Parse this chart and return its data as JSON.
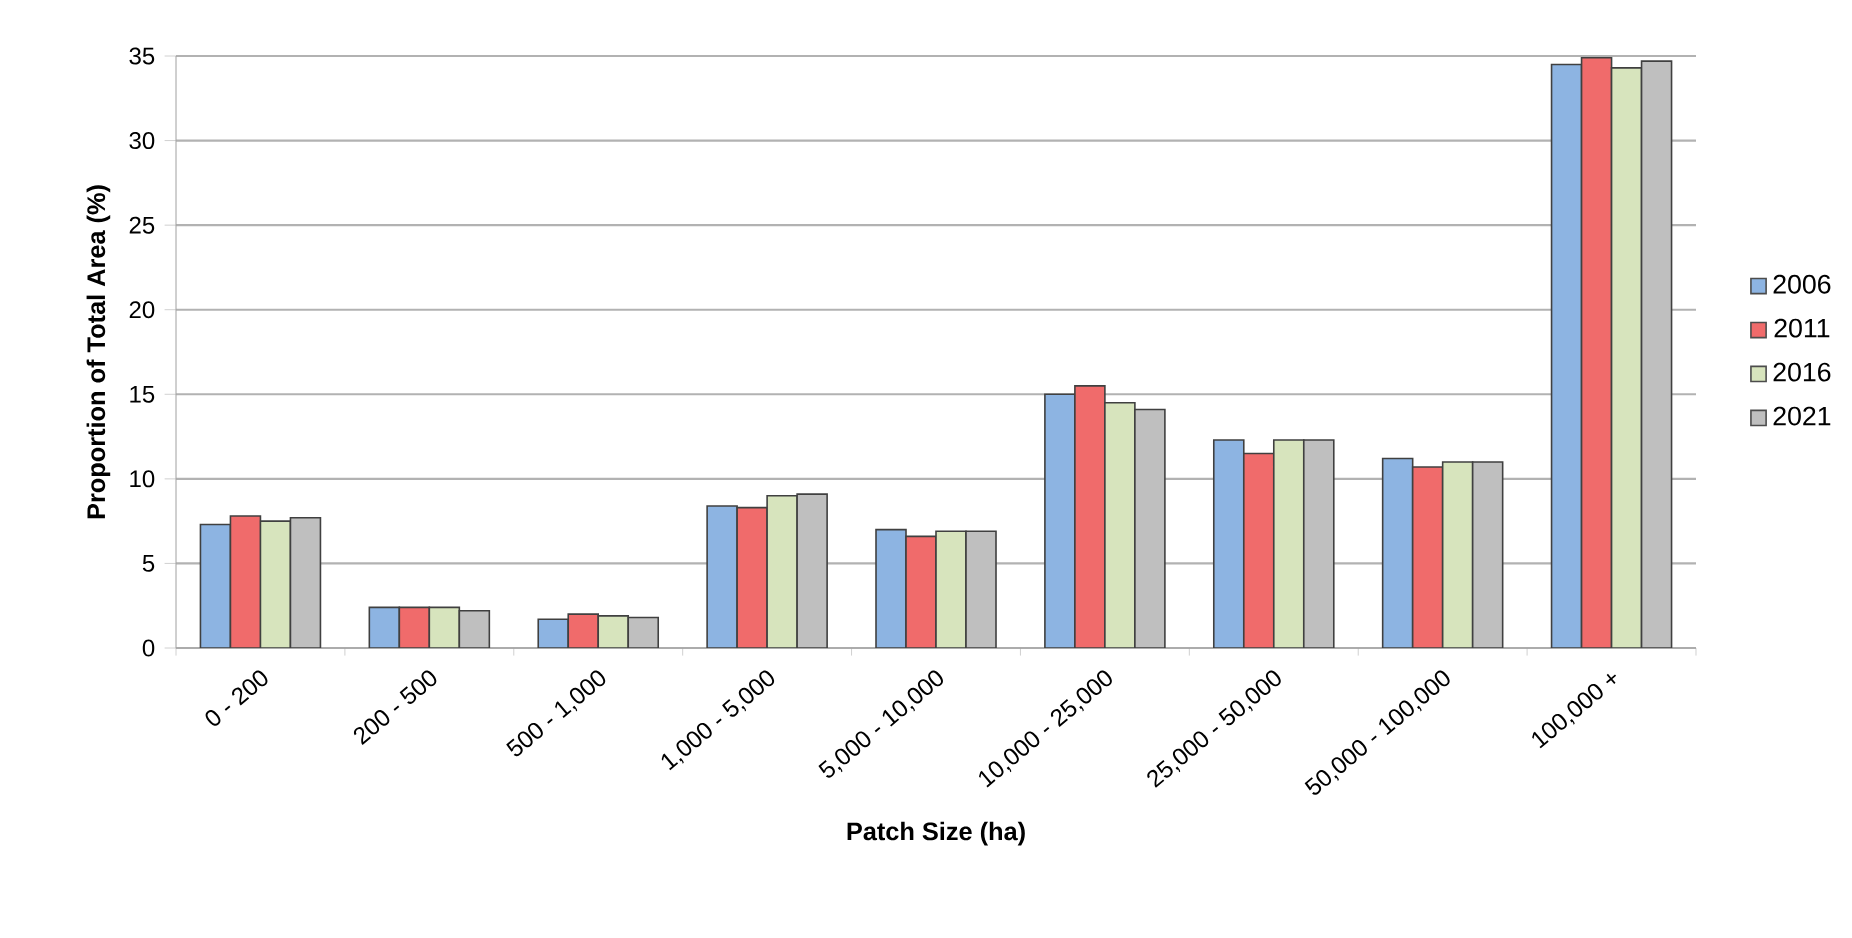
{
  "chart_data": {
    "type": "bar",
    "xlabel": "Patch Size (ha)",
    "ylabel": "Proportion of Total Area (%)",
    "categories": [
      "0 - 200",
      "200 - 500",
      "500 - 1,000",
      "1,000 - 5,000",
      "5,000 - 10,000",
      "10,000 - 25,000",
      "25,000 - 50,000",
      "50,000 - 100,000",
      "100,000 +"
    ],
    "series": [
      {
        "name": "2006",
        "color": "#8db4e2",
        "values": [
          7.3,
          2.4,
          1.7,
          8.4,
          7.0,
          15.0,
          12.3,
          11.2,
          34.5
        ]
      },
      {
        "name": "2011",
        "color": "#f06b6b",
        "values": [
          7.8,
          2.4,
          2.0,
          8.3,
          6.6,
          15.5,
          11.5,
          10.7,
          34.9
        ]
      },
      {
        "name": "2016",
        "color": "#d7e4bd",
        "values": [
          7.5,
          2.4,
          1.9,
          9.0,
          6.9,
          14.5,
          12.3,
          11.0,
          34.3
        ]
      },
      {
        "name": "2021",
        "color": "#bfbfbf",
        "values": [
          7.7,
          2.2,
          1.8,
          9.1,
          6.9,
          14.1,
          12.3,
          11.0,
          34.7
        ]
      }
    ],
    "ylim": [
      0,
      35
    ],
    "yticks": [
      0,
      5,
      10,
      15,
      20,
      25,
      30,
      35
    ],
    "grid": "y",
    "legend": "right"
  }
}
